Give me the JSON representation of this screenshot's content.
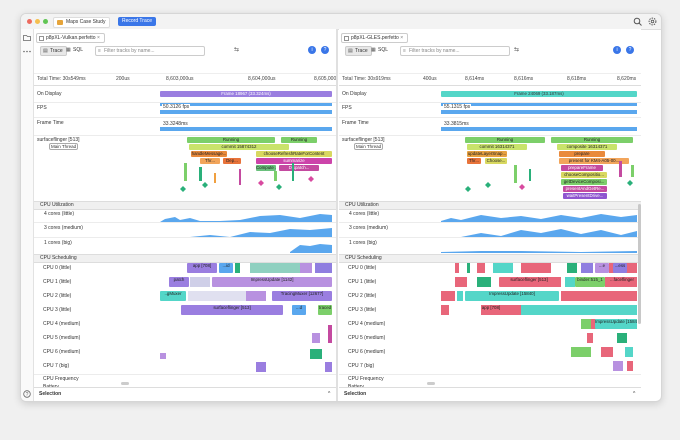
{
  "app": {
    "tab": "Maps Case Study",
    "record": "Record Trace"
  },
  "colors": {
    "accent": "#3a76e8",
    "display": "#9a7ee0",
    "display_right": "#54d6c8",
    "cpu_util": "#5aa7ee"
  },
  "left": {
    "tab": "p8pXL-Vulkan.perfetto",
    "trace_btn": "Trace",
    "sql_btn": "SQL",
    "filter_placeholder": "Filter tracks by name...",
    "total": "Total Time: 30s549ms",
    "ticks": [
      "200us",
      "8,603,000us",
      "8,604,000us",
      "8,605,000"
    ],
    "tracks": {
      "display": "On Display",
      "fps": "FPS",
      "frame_time": "Frame Time",
      "sf": "surfaceflinger [513]",
      "main_thread": "Main Thread"
    },
    "display_label": "Frame 18967 (33.324ms)",
    "fps_value": "50.3126 fps",
    "ft_value": "33.3248ms",
    "sf_slices": [
      "Running",
      "Running",
      "commit 15874312",
      "handleMessage...",
      "chooseRefreshRateForContent",
      "summarize",
      "Thr...",
      "Dep...",
      "Compute ...",
      "Dispatch..."
    ],
    "cpu_util": "CPU Utilization",
    "cores": [
      "4 cores (little)",
      "3 cores (medium)",
      "1 cores (big)"
    ],
    "cpu_sched": "CPU Scheduling",
    "cpus": [
      "CPU 0 (little)",
      "CPU 1 (little)",
      "CPU 2 (little)",
      "CPU 3 (little)",
      "CPU 4 (medium)",
      "CPU 5 (medium)",
      "CPU 6 (medium)",
      "CPU 7 (big)"
    ],
    "sched_labels": [
      "app [708]",
      "...id",
      "patch",
      "ImpressUpdate [1142]",
      "..gMuxer",
      "Lite_2",
      "TracingMuxer [12677]",
      "surfaceflinger [513]",
      "...d",
      "traced"
    ],
    "cpu_freq": "CPU Frequency",
    "battery": "Battery",
    "selection": "Selection"
  },
  "right": {
    "tab": "p8pXL-GLES.perfetto",
    "trace_btn": "Trace",
    "sql_btn": "SQL",
    "filter_placeholder": "Filter tracks by name...",
    "total": "Total Time: 30s919ms",
    "ticks": [
      "400us",
      "8,614ms",
      "8,616ms",
      "8,618ms",
      "8,620ms"
    ],
    "tracks": {
      "display": "On Display",
      "fps": "FPS",
      "frame_time": "Frame Time",
      "sf": "surfaceflinger [513]",
      "main_thread": "Main Thread"
    },
    "display_label": "Frame 24069 (33.187ms)",
    "fps_value": "55.1315 fps",
    "ft_value": "33.3815ms",
    "sf_slices": [
      "Running",
      "Running",
      "commit 16314371",
      "composite 16314371",
      "prepare",
      "updateLayerSnap...",
      "present for KM4-A05-00...",
      "Thr...",
      "Choose...",
      "prepareFrame",
      "chooseCompositio...",
      "getDeviceComposi...",
      "presentAndGetRe...",
      "waitPresentDrive..."
    ],
    "cpu_util": "CPU Utilization",
    "cores": [
      "4 cores (little)",
      "3 cores (medium)",
      "1 cores (big)"
    ],
    "cpu_sched": "CPU Scheduling",
    "cpus": [
      "CPU 0 (little)",
      "CPU 1 (little)",
      "CPU 2 (little)",
      "CPU 3 (little)",
      "CPU 4 (medium)",
      "CPU 5 (medium)",
      "CPU 6 (medium)",
      "CPU 7 (big)"
    ],
    "sched_labels": [
      "...e",
      "...ess",
      "surfaceflinger [513]",
      "binder:515_1",
      "...faceflinger",
      "ImpressUpdate [15840]",
      "app [708]",
      "ImpressUpdate [15840]"
    ],
    "cpu_freq": "CPU Frequency",
    "battery": "Battery",
    "selection": "Selection"
  }
}
